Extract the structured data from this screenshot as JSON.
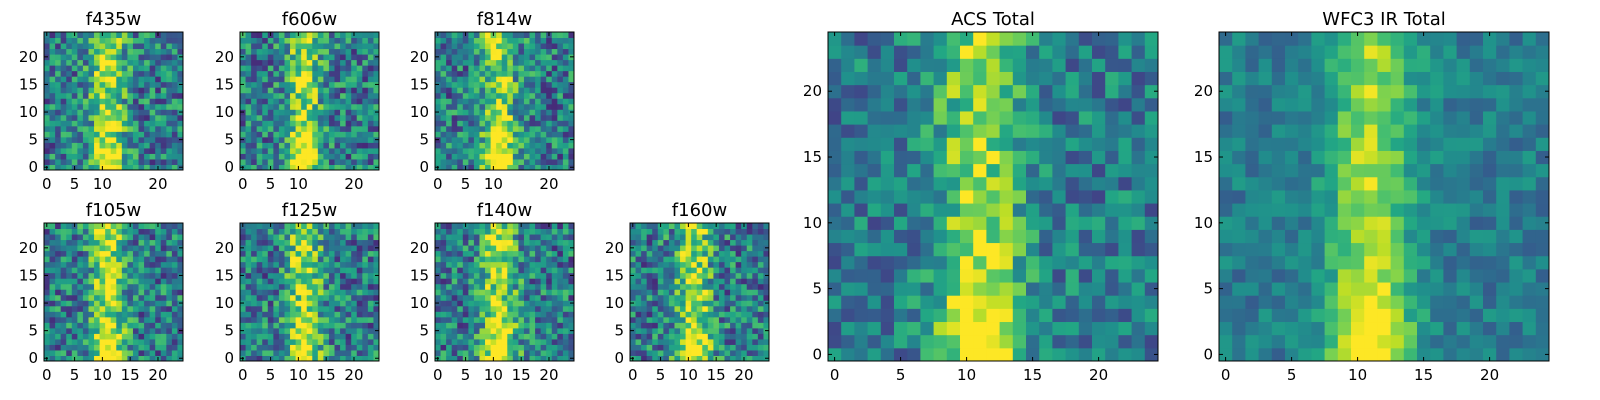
{
  "chart_data": [
    {
      "type": "heatmap",
      "title": "f435w",
      "xticks": [
        "0",
        "5",
        "10",
        "20"
      ],
      "yticks": [
        "0",
        "5",
        "10",
        "15",
        "20"
      ],
      "xlim": [
        0,
        24
      ],
      "ylim": [
        0,
        24
      ],
      "bright_col": 11,
      "bottom_blob": true,
      "colormap": "viridis"
    },
    {
      "type": "heatmap",
      "title": "f606w",
      "xticks": [
        "0",
        "5",
        "10",
        "20"
      ],
      "yticks": [
        "0",
        "5",
        "10",
        "15",
        "20"
      ],
      "xlim": [
        0,
        24
      ],
      "ylim": [
        0,
        24
      ],
      "bright_col": 11,
      "bottom_blob": true,
      "colormap": "viridis"
    },
    {
      "type": "heatmap",
      "title": "f814w",
      "xticks": [
        "0",
        "5",
        "10",
        "20"
      ],
      "yticks": [
        "0",
        "5",
        "10",
        "15",
        "20"
      ],
      "xlim": [
        0,
        24
      ],
      "ylim": [
        0,
        24
      ],
      "bright_col": 11,
      "bottom_blob": true,
      "colormap": "viridis"
    },
    {
      "type": "heatmap",
      "title": "f105w",
      "xticks": [
        "0",
        "5",
        "10",
        "15",
        "20"
      ],
      "yticks": [
        "0",
        "5",
        "10",
        "15",
        "20"
      ],
      "xlim": [
        0,
        24
      ],
      "ylim": [
        0,
        24
      ],
      "bright_col": 11,
      "bottom_blob": true,
      "colormap": "viridis"
    },
    {
      "type": "heatmap",
      "title": "f125w",
      "xticks": [
        "0",
        "5",
        "10",
        "15",
        "20"
      ],
      "yticks": [
        "0",
        "5",
        "10",
        "15",
        "20"
      ],
      "xlim": [
        0,
        24
      ],
      "ylim": [
        0,
        24
      ],
      "bright_col": 11,
      "bottom_blob": true,
      "colormap": "viridis"
    },
    {
      "type": "heatmap",
      "title": "f140w",
      "xticks": [
        "0",
        "5",
        "10",
        "15",
        "20"
      ],
      "yticks": [
        "0",
        "5",
        "10",
        "15",
        "20"
      ],
      "xlim": [
        0,
        24
      ],
      "ylim": [
        0,
        24
      ],
      "bright_col": 11,
      "bottom_blob": true,
      "colormap": "viridis"
    },
    {
      "type": "heatmap",
      "title": "f160w",
      "xticks": [
        "0",
        "5",
        "10",
        "15",
        "20"
      ],
      "yticks": [
        "0",
        "5",
        "10",
        "15",
        "20"
      ],
      "xlim": [
        0,
        24
      ],
      "ylim": [
        0,
        24
      ],
      "bright_col": 11,
      "bottom_blob": true,
      "colormap": "viridis"
    },
    {
      "type": "heatmap",
      "title": "ACS Total",
      "xticks": [
        "0",
        "5",
        "10",
        "15",
        "20"
      ],
      "yticks": [
        "0",
        "5",
        "10",
        "15",
        "20"
      ],
      "xlim": [
        0,
        24
      ],
      "ylim": [
        0,
        24
      ],
      "bright_col": 11,
      "bottom_blob": true,
      "colormap": "viridis"
    },
    {
      "type": "heatmap",
      "title": "WFC3 IR Total",
      "xticks": [
        "0",
        "5",
        "10",
        "15",
        "20"
      ],
      "yticks": [
        "0",
        "5",
        "10",
        "15",
        "20"
      ],
      "xlim": [
        0,
        24
      ],
      "ylim": [
        0,
        24
      ],
      "bright_col": 11,
      "bottom_blob": true,
      "colormap": "viridis"
    }
  ],
  "colors": {
    "low": "#440154",
    "mid": "#21918c",
    "high": "#fde725"
  }
}
